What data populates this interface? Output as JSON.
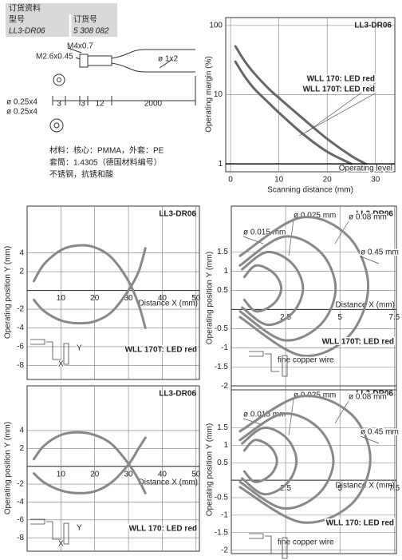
{
  "header": {
    "order_info": "订货资料",
    "type_label": "型号",
    "order_no_label": "订货号",
    "type": "LL3-DR06",
    "order_no": "5 308 082"
  },
  "drawing": {
    "labels": [
      "M4x0.7",
      "M2.6x0.45",
      "ø 1x2",
      "ø 0.25x4",
      "ø 0.25x4",
      "3",
      "3",
      "12",
      "2000"
    ]
  },
  "material": {
    "lines": [
      "材料：核心：PMMA，外套：PE",
      "套筒：1.4305（德国材料编号）",
      "不锈钢，抗锈和酸"
    ]
  },
  "chart_data": [
    {
      "type": "line",
      "title": "LL3-DR06",
      "x_label": "Scanning distance (mm)",
      "y_label": "Operating margin (%)",
      "x": [
        1,
        3,
        5,
        8,
        10,
        15,
        20,
        25,
        28
      ],
      "series": [
        {
          "name": "WLL 170: LED red",
          "color": "#666666",
          "values": [
            50,
            30,
            20,
            12,
            9,
            4.5,
            2.3,
            1.3,
            1
          ]
        },
        {
          "name": "WLL 170T: LED red",
          "color": "#666666",
          "values": [
            30,
            18,
            12,
            7.5,
            5.5,
            2.7,
            1.5,
            1,
            null
          ]
        }
      ],
      "xlim": [
        -1,
        34
      ],
      "xticks": [
        0,
        10,
        20,
        30
      ],
      "ylim": [
        0.77,
        130
      ],
      "yticks": [
        1,
        10,
        100
      ],
      "y_scale": "log",
      "grid": true,
      "annotations": [
        "Operating level"
      ]
    },
    {
      "type": "line",
      "title": "LL3-DR06",
      "x_label": "Distance X (mm)",
      "y_label": "Operating position Y (mm)",
      "x": [
        2,
        5,
        10,
        15,
        20,
        25,
        30,
        33,
        35
      ],
      "series": [
        {
          "color": "#888888",
          "values": [
            1,
            2.8,
            4.3,
            4.8,
            4.6,
            3.5,
            1,
            -1.5,
            -4
          ]
        },
        {
          "color": "#888888",
          "values": [
            -1,
            -2.2,
            -3.2,
            -3.5,
            -3.3,
            -2.3,
            0,
            2,
            4.5
          ]
        }
      ],
      "xlim": [
        0,
        51
      ],
      "xticks": [
        10,
        20,
        30,
        40,
        50
      ],
      "ylim": [
        -9.5,
        9
      ],
      "yticks": [
        4,
        2,
        -2,
        -4,
        -6,
        -8
      ],
      "grid": true,
      "annotations": [
        "WLL 170T: LED red",
        "Y",
        "X"
      ]
    },
    {
      "type": "line",
      "title": "LL3-DR06",
      "x_label": "Distance X (mm)",
      "y_label": "Operating position Y (mm)",
      "series": [
        {
          "name": "ø 0.015 mm",
          "color": "#888888",
          "x": [
            0.6,
            1.15,
            1.95,
            2.3,
            1.95,
            1.15,
            0.6
          ],
          "values": [
            0.85,
            1.15,
            0.95,
            0.55,
            0.15,
            -0.05,
            0.25
          ]
        },
        {
          "name": "ø 0.025 mm",
          "color": "#888888",
          "x": [
            0.5,
            1.65,
            2.8,
            3.3,
            2.8,
            1.65,
            0.5
          ],
          "values": [
            1.05,
            1.5,
            1.2,
            0.55,
            -0.1,
            -0.4,
            0.05
          ]
        },
        {
          "name": "ø 0.08 mm",
          "color": "#888888",
          "x": [
            0.4,
            2.4,
            4.1,
            4.8,
            4.1,
            2.4,
            0.4
          ],
          "values": [
            1.15,
            1.9,
            1.5,
            0.55,
            -0.4,
            -0.8,
            -0.05
          ]
        },
        {
          "name": "ø 0.45 mm",
          "color": "#888888",
          "x": [
            0.4,
            3.2,
            5.4,
            6.3,
            5.4,
            3.2,
            0.4
          ],
          "values": [
            1.4,
            2.4,
            1.9,
            0.6,
            -0.7,
            -1.2,
            -0.2
          ]
        }
      ],
      "xlim": [
        0,
        7.6
      ],
      "xticks": [
        2.5,
        5,
        7.5
      ],
      "ylim": [
        -2.1,
        2.7
      ],
      "yticks": [
        1.5,
        1,
        0.5,
        -0.5,
        -1,
        -1.5,
        -2
      ],
      "grid": true,
      "annotations": [
        "WLL 170T: LED red",
        "fine copper wire"
      ]
    },
    {
      "type": "line",
      "title": "LL3-DR06",
      "x_label": "Distance X (mm)",
      "y_label": "Operating position Y (mm)",
      "x": [
        2,
        5,
        10,
        15,
        20,
        25,
        30,
        33,
        35
      ],
      "series": [
        {
          "color": "#888888",
          "values": [
            0.8,
            2.3,
            3.5,
            3.8,
            3.5,
            2.5,
            0.3,
            -1.5,
            -3
          ]
        },
        {
          "color": "#888888",
          "values": [
            -0.8,
            -1.8,
            -2.7,
            -3,
            -2.8,
            -1.8,
            0.2,
            2,
            3.2
          ]
        }
      ],
      "xlim": [
        0,
        51
      ],
      "xticks": [
        10,
        20,
        30,
        40,
        50
      ],
      "ylim": [
        -9.5,
        9
      ],
      "yticks": [
        4,
        2,
        -2,
        -4,
        -6,
        -8
      ],
      "grid": true,
      "annotations": [
        "WLL 170: LED red",
        "Y",
        "X"
      ]
    },
    {
      "type": "line",
      "title": "LL3-DR06",
      "x_label": "Distance X (mm)",
      "y_label": "Operating position Y (mm)",
      "series": [
        {
          "name": "ø 0.015 mm",
          "color": "#888888",
          "x": [
            0.6,
            1.1,
            1.8,
            2.1,
            1.8,
            1.1,
            0.6
          ],
          "values": [
            0.85,
            1.15,
            0.95,
            0.55,
            0.15,
            -0.05,
            0.25
          ]
        },
        {
          "name": "ø 0.025 mm",
          "color": "#888888",
          "x": [
            0.5,
            1.5,
            2.55,
            3,
            2.55,
            1.5,
            0.5
          ],
          "values": [
            1.05,
            1.5,
            1.2,
            0.55,
            -0.1,
            -0.4,
            0.05
          ]
        },
        {
          "name": "ø 0.08 mm",
          "color": "#888888",
          "x": [
            0.4,
            2.35,
            4,
            4.7,
            4,
            2.35,
            0.4
          ],
          "values": [
            1.15,
            1.9,
            1.5,
            0.55,
            -0.4,
            -0.8,
            -0.05
          ]
        },
        {
          "name": "ø 0.45 mm",
          "color": "#888888",
          "x": [
            0.4,
            3.2,
            5.5,
            6.4,
            5.5,
            3.2,
            0.4
          ],
          "values": [
            1.4,
            2.4,
            1.9,
            0.6,
            -0.7,
            -1.2,
            -0.2
          ]
        }
      ],
      "xlim": [
        0,
        7.6
      ],
      "xticks": [
        2.5,
        5,
        7.5
      ],
      "ylim": [
        -2.1,
        2.7
      ],
      "yticks": [
        1.5,
        1,
        0.5,
        -0.5,
        -1,
        -1.5,
        -2
      ],
      "grid": true,
      "annotations": [
        "WLL 170: LED red",
        "fine copper wire"
      ]
    }
  ]
}
